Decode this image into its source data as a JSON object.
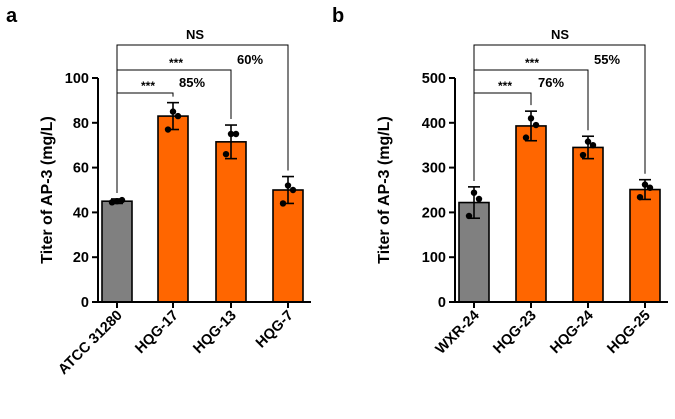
{
  "chart_data": [
    {
      "panel_label": "a",
      "type": "bar",
      "ylabel": "Titer of AP-3 (mg/L)",
      "ylim": [
        0,
        100
      ],
      "yticks": [
        0,
        20,
        40,
        60,
        80,
        100
      ],
      "categories": [
        "ATCC 31280",
        "HQG-17",
        "HQG-13",
        "HQG-7"
      ],
      "values": [
        45,
        83,
        71.5,
        50
      ],
      "errors": [
        1,
        6,
        7.5,
        6
      ],
      "points": [
        [
          44.5,
          45.5,
          45
        ],
        [
          77,
          83,
          85
        ],
        [
          66,
          75,
          75
        ],
        [
          44,
          50,
          52
        ]
      ],
      "colors": [
        "#808080",
        "#ff6600",
        "#ff6600",
        "#ff6600"
      ],
      "comparisons": [
        {
          "from": 0,
          "to": 1,
          "sig": "***",
          "pct": "85%"
        },
        {
          "from": 0,
          "to": 2,
          "sig": "***",
          "pct": "60%"
        },
        {
          "from": 0,
          "to": 3,
          "sig": "NS",
          "pct": ""
        }
      ]
    },
    {
      "panel_label": "b",
      "type": "bar",
      "ylabel": "Titer of AP-3 (mg/L)",
      "ylim": [
        0,
        500
      ],
      "yticks": [
        0,
        100,
        200,
        300,
        400,
        500
      ],
      "categories": [
        "WXR-24",
        "HQG-23",
        "HQG-24",
        "HQG-25"
      ],
      "values": [
        222,
        393,
        345,
        251
      ],
      "errors": [
        35,
        33,
        25,
        22
      ],
      "points": [
        [
          192,
          230,
          244
        ],
        [
          367,
          395,
          410
        ],
        [
          328,
          350,
          358
        ],
        [
          234,
          255,
          262
        ]
      ],
      "colors": [
        "#808080",
        "#ff6600",
        "#ff6600",
        "#ff6600"
      ],
      "comparisons": [
        {
          "from": 0,
          "to": 1,
          "sig": "***",
          "pct": "76%"
        },
        {
          "from": 0,
          "to": 2,
          "sig": "***",
          "pct": "55%"
        },
        {
          "from": 0,
          "to": 3,
          "sig": "NS",
          "pct": ""
        }
      ]
    }
  ]
}
